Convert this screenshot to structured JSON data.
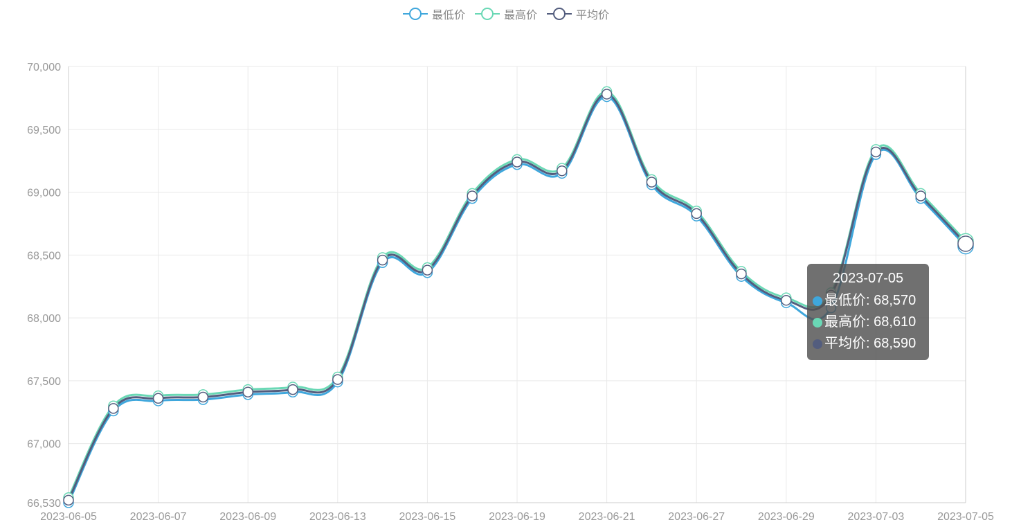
{
  "legend": [
    {
      "name": "最低价",
      "color": "#3fa7dc"
    },
    {
      "name": "最高价",
      "color": "#6ad8b5"
    },
    {
      "name": "平均价",
      "color": "#535d7e"
    }
  ],
  "chart_data": {
    "type": "line",
    "smooth": true,
    "x": [
      "2023-06-05",
      "2023-06-06",
      "2023-06-07",
      "2023-06-08",
      "2023-06-09",
      "2023-06-12",
      "2023-06-13",
      "2023-06-14",
      "2023-06-15",
      "2023-06-16",
      "2023-06-19",
      "2023-06-20",
      "2023-06-21",
      "2023-06-26",
      "2023-06-27",
      "2023-06-28",
      "2023-06-29",
      "2023-06-30",
      "2023-07-03",
      "2023-07-04",
      "2023-07-05"
    ],
    "x_tick_labels": [
      "2023-06-05",
      "2023-06-07",
      "2023-06-09",
      "2023-06-13",
      "2023-06-15",
      "2023-06-19",
      "2023-06-21",
      "2023-06-27",
      "2023-06-29",
      "2023-07-03",
      "2023-07-05"
    ],
    "series": [
      {
        "name": "最低价",
        "color": "#3fa7dc",
        "values": [
          66530,
          67260,
          67340,
          67350,
          67390,
          67410,
          67490,
          68440,
          68360,
          68950,
          69220,
          69150,
          69760,
          69060,
          68810,
          68330,
          68120,
          68080,
          69300,
          68950,
          68570
        ]
      },
      {
        "name": "最高价",
        "color": "#6ad8b5",
        "values": [
          66570,
          67300,
          67380,
          67390,
          67430,
          67450,
          67530,
          68480,
          68400,
          68990,
          69260,
          69190,
          69800,
          69100,
          68850,
          68370,
          68160,
          68200,
          69340,
          68990,
          68610
        ]
      },
      {
        "name": "平均价",
        "color": "#535d7e",
        "values": [
          66550,
          67280,
          67360,
          67370,
          67410,
          67430,
          67510,
          68460,
          68380,
          68970,
          69240,
          69170,
          69780,
          69080,
          68830,
          68350,
          68140,
          68180,
          69320,
          68970,
          68590
        ]
      }
    ],
    "ylim": [
      66530,
      70000
    ],
    "y_ticks": [
      66530,
      67000,
      67500,
      68000,
      68500,
      69000,
      69500,
      70000
    ],
    "y_tick_labels": [
      "66,530",
      "67,000",
      "67,500",
      "68,000",
      "68,500",
      "69,000",
      "69,500",
      "70,000"
    ],
    "grid": true,
    "legend_position": "top-center"
  },
  "tooltip": {
    "title": "2023-07-05",
    "rows": [
      {
        "label": "最低价: 68,570",
        "color": "#3fa7dc"
      },
      {
        "label": "最高价: 68,610",
        "color": "#6ad8b5"
      },
      {
        "label": "平均价: 68,590",
        "color": "#535d7e"
      }
    ]
  }
}
